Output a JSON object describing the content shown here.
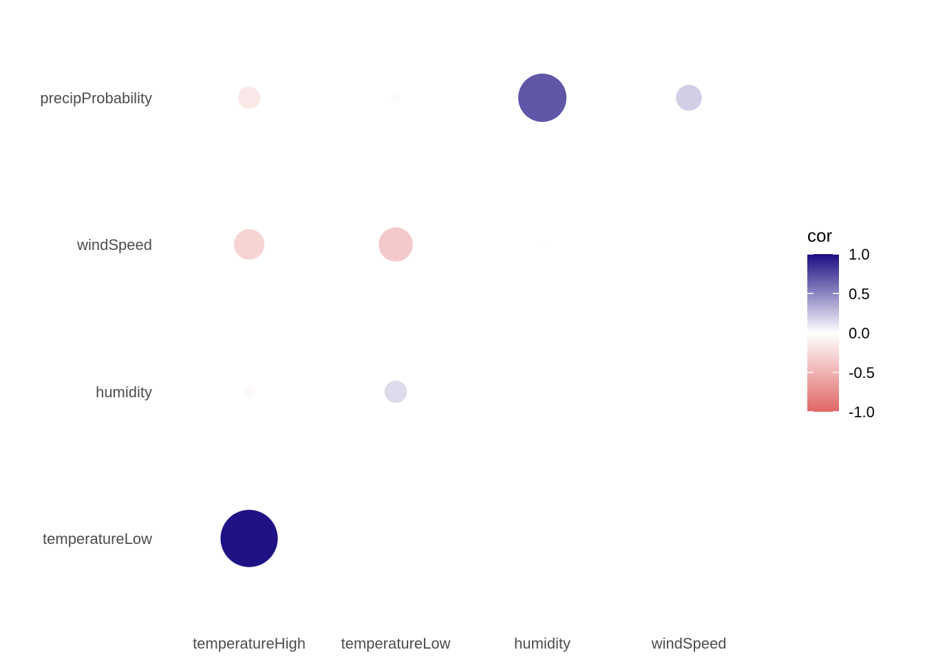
{
  "chart_data": {
    "type": "scatter",
    "subtype": "correlation-bubble",
    "x_categories": [
      "temperatureHigh",
      "temperatureLow",
      "humidity",
      "windSpeed"
    ],
    "y_categories": [
      "temperatureLow",
      "humidity",
      "windSpeed",
      "precipProbability"
    ],
    "points": [
      {
        "x": "temperatureHigh",
        "y": "temperatureLow",
        "value": 0.98
      },
      {
        "x": "temperatureHigh",
        "y": "humidity",
        "value": -0.04
      },
      {
        "x": "temperatureLow",
        "y": "humidity",
        "value": 0.15
      },
      {
        "x": "temperatureHigh",
        "y": "windSpeed",
        "value": -0.28
      },
      {
        "x": "temperatureLow",
        "y": "windSpeed",
        "value": -0.35
      },
      {
        "x": "humidity",
        "y": "windSpeed",
        "value": 0.01
      },
      {
        "x": "temperatureHigh",
        "y": "precipProbability",
        "value": -0.15
      },
      {
        "x": "temperatureLow",
        "y": "precipProbability",
        "value": 0.02
      },
      {
        "x": "humidity",
        "y": "precipProbability",
        "value": 0.7
      },
      {
        "x": "windSpeed",
        "y": "precipProbability",
        "value": 0.2
      }
    ],
    "legend": {
      "title": "cor",
      "position": "right",
      "breaks": [
        "1.0",
        "0.5",
        "0.0",
        "-0.5",
        "-1.0"
      ],
      "range": [
        -1,
        1
      ],
      "colors": {
        "high": "#1a0d82",
        "mid": "#ffffff",
        "low": "#e06666"
      }
    },
    "grid": false
  }
}
